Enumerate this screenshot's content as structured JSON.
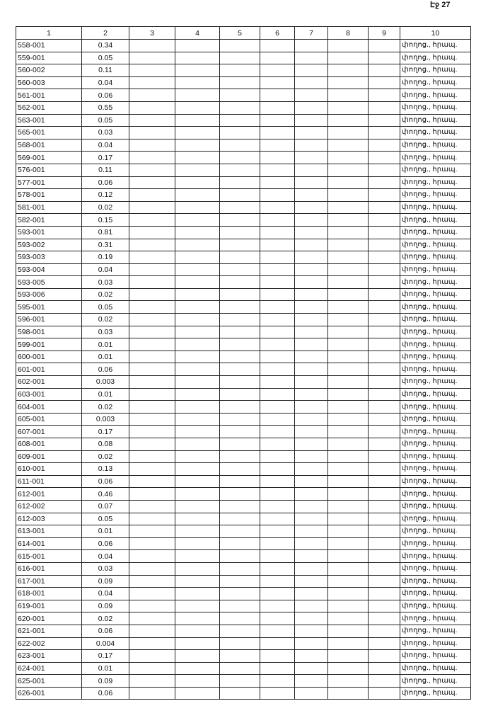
{
  "page_label": "Էջ 27",
  "headers": [
    "1",
    "2",
    "3",
    "4",
    "5",
    "6",
    "7",
    "8",
    "9",
    "10"
  ],
  "col10_text": "փողոց., հրապ.",
  "rows": [
    [
      "558-001",
      "0.34"
    ],
    [
      "559-001",
      "0.05"
    ],
    [
      "560-002",
      "0.11"
    ],
    [
      "560-003",
      "0.04"
    ],
    [
      "561-001",
      "0.06"
    ],
    [
      "562-001",
      "0.55"
    ],
    [
      "563-001",
      "0.05"
    ],
    [
      "565-001",
      "0.03"
    ],
    [
      "568-001",
      "0.04"
    ],
    [
      "569-001",
      "0.17"
    ],
    [
      "576-001",
      "0.11"
    ],
    [
      "577-001",
      "0.06"
    ],
    [
      "578-001",
      "0.12"
    ],
    [
      "581-001",
      "0.02"
    ],
    [
      "582-001",
      "0.15"
    ],
    [
      "593-001",
      "0.81"
    ],
    [
      "593-002",
      "0.31"
    ],
    [
      "593-003",
      "0.19"
    ],
    [
      "593-004",
      "0.04"
    ],
    [
      "593-005",
      "0.03"
    ],
    [
      "593-006",
      "0.02"
    ],
    [
      "595-001",
      "0.05"
    ],
    [
      "596-001",
      "0.02"
    ],
    [
      "598-001",
      "0.03"
    ],
    [
      "599-001",
      "0.01"
    ],
    [
      "600-001",
      "0.01"
    ],
    [
      "601-001",
      "0.06"
    ],
    [
      "602-001",
      "0.003"
    ],
    [
      "603-001",
      "0.01"
    ],
    [
      "604-001",
      "0.02"
    ],
    [
      "605-001",
      "0.003"
    ],
    [
      "607-001",
      "0.17"
    ],
    [
      "608-001",
      "0.08"
    ],
    [
      "609-001",
      "0.02"
    ],
    [
      "610-001",
      "0.13"
    ],
    [
      "611-001",
      "0.06"
    ],
    [
      "612-001",
      "0.46"
    ],
    [
      "612-002",
      "0.07"
    ],
    [
      "612-003",
      "0.05"
    ],
    [
      "613-001",
      "0.01"
    ],
    [
      "614-001",
      "0.06"
    ],
    [
      "615-001",
      "0.04"
    ],
    [
      "616-001",
      "0.03"
    ],
    [
      "617-001",
      "0.09"
    ],
    [
      "618-001",
      "0.04"
    ],
    [
      "619-001",
      "0.09"
    ],
    [
      "620-001",
      "0.02"
    ],
    [
      "621-001",
      "0.06"
    ],
    [
      "622-002",
      "0.004"
    ],
    [
      "623-001",
      "0.17"
    ],
    [
      "624-001",
      "0.01"
    ],
    [
      "625-001",
      "0.09"
    ],
    [
      "626-001",
      "0.06"
    ]
  ]
}
